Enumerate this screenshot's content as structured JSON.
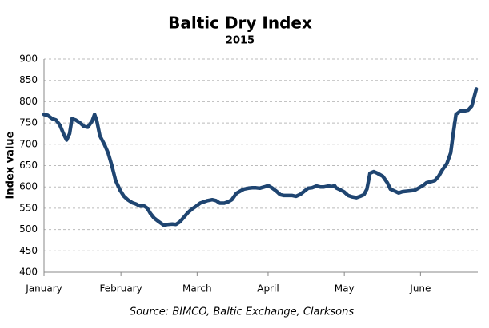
{
  "chart_data": {
    "type": "line",
    "title": "Baltic Dry Index",
    "subtitle": "2015",
    "y_label": "Index value",
    "source": "Source: BIMCO, Baltic Exchange, Clarksons",
    "color": "#1f4571",
    "grid": true,
    "xlim": [
      0,
      5.75
    ],
    "ylim": [
      400,
      900
    ],
    "yticks": [
      400,
      450,
      500,
      550,
      600,
      650,
      700,
      750,
      800,
      850,
      900
    ],
    "xticks": [
      {
        "value": 0,
        "label": "January"
      },
      {
        "value": 1.02,
        "label": "February"
      },
      {
        "value": 2.03,
        "label": "March"
      },
      {
        "value": 2.97,
        "label": "April"
      },
      {
        "value": 3.98,
        "label": "May"
      },
      {
        "value": 4.99,
        "label": "June"
      }
    ],
    "x": [
      0,
      0.05,
      0.11,
      0.16,
      0.21,
      0.27,
      0.3,
      0.34,
      0.37,
      0.42,
      0.48,
      0.53,
      0.58,
      0.64,
      0.67,
      0.7,
      0.74,
      0.8,
      0.85,
      0.9,
      0.95,
      1.01,
      1.06,
      1.11,
      1.17,
      1.22,
      1.27,
      1.33,
      1.37,
      1.41,
      1.46,
      1.51,
      1.59,
      1.64,
      1.7,
      1.75,
      1.8,
      1.86,
      1.91,
      1.96,
      2.02,
      2.07,
      2.12,
      2.17,
      2.23,
      2.28,
      2.33,
      2.39,
      2.44,
      2.49,
      2.55,
      2.6,
      2.65,
      2.71,
      2.76,
      2.81,
      2.86,
      2.92,
      2.97,
      3.02,
      3.08,
      3.13,
      3.18,
      3.24,
      3.29,
      3.34,
      3.4,
      3.45,
      3.5,
      3.55,
      3.61,
      3.66,
      3.71,
      3.77,
      3.82,
      3.85,
      3.87,
      3.93,
      3.98,
      4.03,
      4.08,
      4.14,
      4.19,
      4.24,
      4.28,
      4.32,
      4.37,
      4.42,
      4.49,
      4.55,
      4.59,
      4.65,
      4.7,
      4.75,
      4.81,
      4.86,
      4.91,
      4.97,
      5.02,
      5.07,
      5.12,
      5.18,
      5.23,
      5.28,
      5.34,
      5.39,
      5.42,
      5.46,
      5.52,
      5.57,
      5.62,
      5.67,
      5.7,
      5.73
    ],
    "values": [
      770,
      768,
      760,
      757,
      745,
      720,
      710,
      725,
      760,
      757,
      750,
      742,
      740,
      755,
      770,
      755,
      720,
      700,
      680,
      650,
      615,
      592,
      578,
      570,
      563,
      560,
      555,
      555,
      550,
      538,
      527,
      520,
      510,
      512,
      513,
      512,
      518,
      530,
      540,
      548,
      555,
      562,
      565,
      568,
      570,
      568,
      562,
      562,
      565,
      570,
      585,
      590,
      595,
      597,
      598,
      598,
      597,
      600,
      603,
      598,
      590,
      582,
      580,
      580,
      580,
      578,
      583,
      590,
      597,
      598,
      602,
      600,
      600,
      602,
      601,
      603,
      598,
      593,
      588,
      580,
      577,
      575,
      578,
      582,
      595,
      632,
      636,
      632,
      625,
      610,
      595,
      590,
      586,
      589,
      590,
      591,
      592,
      598,
      603,
      610,
      612,
      615,
      625,
      640,
      655,
      680,
      720,
      770,
      778,
      778,
      780,
      790,
      810,
      830
    ]
  }
}
